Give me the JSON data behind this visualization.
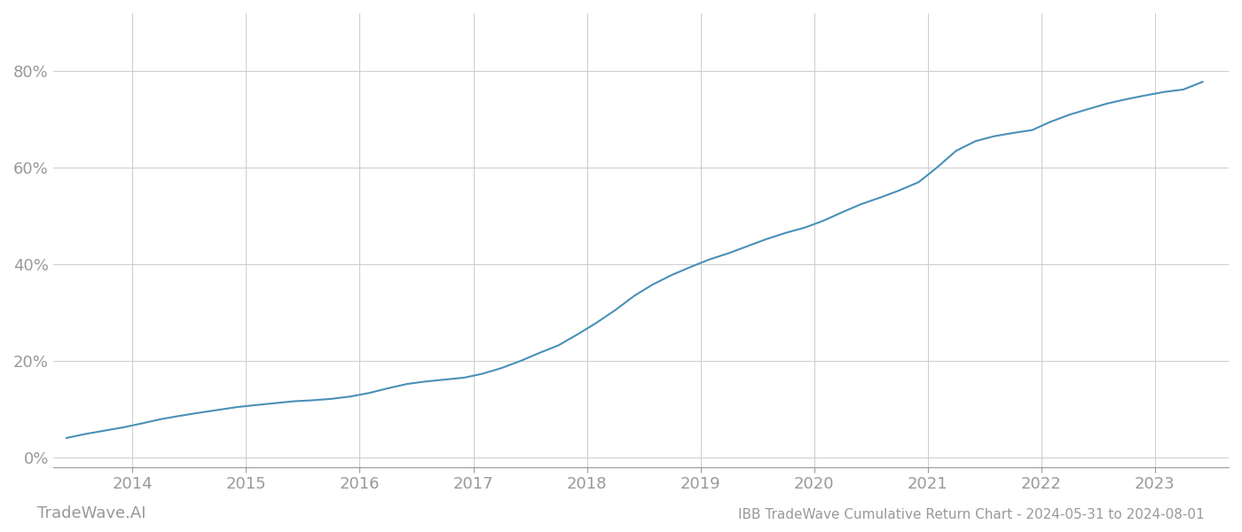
{
  "title": "IBB TradeWave Cumulative Return Chart - 2024-05-31 to 2024-08-01",
  "watermark": "TradeWave.AI",
  "line_color": "#4a90b8",
  "background_color": "#ffffff",
  "grid_color": "#cccccc",
  "tick_color": "#999999",
  "title_color": "#999999",
  "watermark_color": "#999999",
  "x_years": [
    2014,
    2015,
    2016,
    2017,
    2018,
    2019,
    2020,
    2021,
    2022,
    2023
  ],
  "x_data": [
    2013.42,
    2013.58,
    2013.75,
    2013.92,
    2014.08,
    2014.25,
    2014.42,
    2014.58,
    2014.75,
    2014.92,
    2015.08,
    2015.25,
    2015.42,
    2015.58,
    2015.75,
    2015.92,
    2016.08,
    2016.25,
    2016.42,
    2016.58,
    2016.75,
    2016.92,
    2017.08,
    2017.25,
    2017.42,
    2017.58,
    2017.75,
    2017.92,
    2018.08,
    2018.25,
    2018.42,
    2018.58,
    2018.75,
    2018.92,
    2019.08,
    2019.25,
    2019.42,
    2019.58,
    2019.75,
    2019.92,
    2020.08,
    2020.25,
    2020.42,
    2020.58,
    2020.75,
    2020.92,
    2021.08,
    2021.25,
    2021.42,
    2021.58,
    2021.75,
    2021.92,
    2022.08,
    2022.25,
    2022.42,
    2022.58,
    2022.75,
    2022.92,
    2023.08,
    2023.25,
    2023.42
  ],
  "y_data": [
    0.04,
    0.048,
    0.055,
    0.062,
    0.07,
    0.079,
    0.086,
    0.092,
    0.098,
    0.104,
    0.108,
    0.112,
    0.116,
    0.118,
    0.121,
    0.126,
    0.133,
    0.143,
    0.152,
    0.157,
    0.161,
    0.165,
    0.173,
    0.185,
    0.2,
    0.216,
    0.232,
    0.255,
    0.278,
    0.305,
    0.335,
    0.358,
    0.378,
    0.395,
    0.41,
    0.423,
    0.438,
    0.452,
    0.465,
    0.476,
    0.49,
    0.508,
    0.525,
    0.538,
    0.553,
    0.57,
    0.6,
    0.635,
    0.655,
    0.665,
    0.672,
    0.678,
    0.695,
    0.71,
    0.722,
    0.733,
    0.742,
    0.75,
    0.757,
    0.762,
    0.778
  ],
  "ylim": [
    -0.02,
    0.92
  ],
  "yticks": [
    0.0,
    0.2,
    0.4,
    0.6,
    0.8
  ],
  "ytick_labels": [
    "0%",
    "20%",
    "40%",
    "60%",
    "80%"
  ],
  "xlim": [
    2013.3,
    2023.65
  ],
  "line_width": 1.5,
  "title_fontsize": 11,
  "tick_fontsize": 13,
  "watermark_fontsize": 13
}
